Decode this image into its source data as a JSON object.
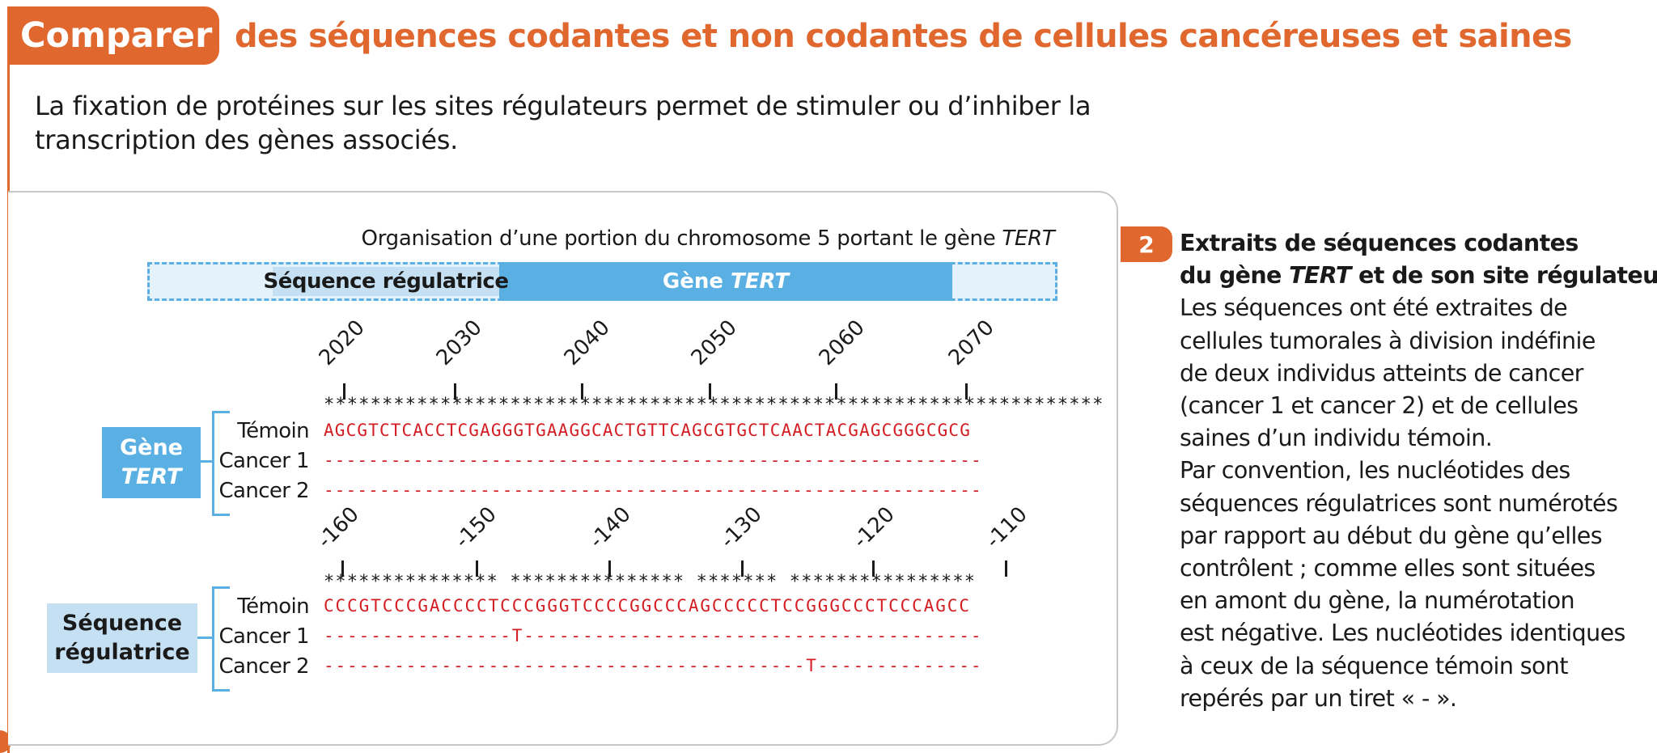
{
  "header": {
    "badge": "Comparer",
    "title": "des séquences codantes et non codantes de cellules cancéreuses et saines"
  },
  "intro": "La fixation de protéines sur les sites régulateurs permet de stimuler ou d’inhiber la transcription des gènes associés.",
  "schema": {
    "title_prefix": "Organisation d’une portion du chromosome 5 portant le gène ",
    "title_gene": "TERT",
    "regulatory_label": "Séquence régulatrice",
    "gene_prefix": "Gène ",
    "gene_name": "TERT"
  },
  "gene_block": {
    "box_line1": "Gène",
    "box_line2": "TERT",
    "ticks": [
      "2020",
      "2030",
      "2040",
      "2050",
      "2060",
      "2070"
    ],
    "stars": "*******************************************************************",
    "rows": [
      {
        "label": "Témoin",
        "seq": "AGCGTCTCACCTCGAGGGTGAAGGCACTGTTCAGCGTGCTCAACTACGAGCGGGCGCG"
      },
      {
        "label": "Cancer 1",
        "seq": "-----------------------------------------------------------"
      },
      {
        "label": "Cancer 2",
        "seq": "-----------------------------------------------------------"
      }
    ]
  },
  "reg_block": {
    "box_line1": "Séquence",
    "box_line2": "régulatrice",
    "ticks": [
      "-160",
      "-150",
      "-140",
      "-130",
      "-120",
      "-110"
    ],
    "stars": "*************** *************** ******* ****************",
    "rows": [
      {
        "label": "Témoin",
        "seq": "CCCGTCCCGACCCCTCCCGGGTCCCCGGCCCAGCCCCCTCCGGGCCCTCCCAGCC"
      },
      {
        "label": "Cancer 1",
        "seq": "----------------T---------------------------------------"
      },
      {
        "label": "Cancer 2",
        "seq": "-----------------------------------------T--------------"
      }
    ]
  },
  "document": {
    "number": "2",
    "title_line1": "Extraits de séquences codantes",
    "title_line2_a": "du gène ",
    "title_line2_gene": "TERT",
    "title_line2_b": " et de son site régulateur.",
    "lines": [
      "Les séquences ont été extraites de",
      "cellules tumorales à division indéfinie",
      "de deux individus atteints de cancer",
      "(cancer 1 et cancer 2) et de cellules",
      "saines d’un individu témoin.",
      "Par convention, les nucléotides des",
      "séquences régulatrices sont numérotés",
      "par rapport au début du gène qu’elles",
      "contrôlent ; comme elles sont situées",
      "en amont du gène, la numérotation",
      "est négative. Les nucléotides identiques",
      "à ceux de la séquence témoin sont",
      "repérés par un tiret « - »."
    ]
  },
  "colors": {
    "accent": "#e0672d",
    "blue": "#5aafe3",
    "light_blue": "#c5e0f2",
    "sequence_red": "#d31e24"
  }
}
